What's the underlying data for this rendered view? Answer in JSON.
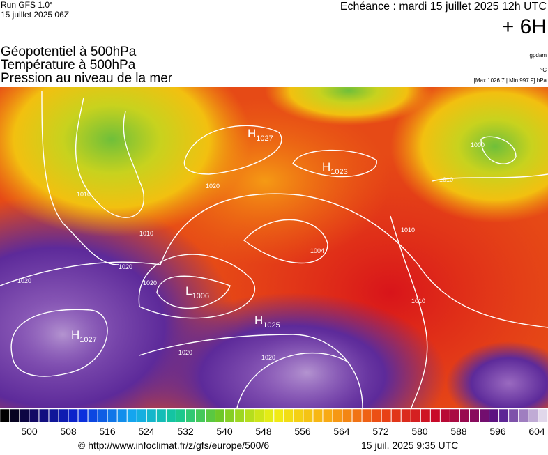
{
  "header": {
    "run": "Run GFS 1.0°",
    "run_date": "15 juillet 2025 06Z",
    "valid": "Echéance : mardi 15 juillet 2025 12h UTC",
    "offset": "+ 6H",
    "layers": [
      "Géopotentiel à 500hPa",
      "Température à 500hPa",
      "Pression au niveau de la mer"
    ],
    "units": [
      "gpdam",
      "°C"
    ],
    "extremes": "[Max 1026.7 | Min 997.9] hPa"
  },
  "pressure_centers": [
    {
      "letter": "H",
      "value": "1027"
    },
    {
      "letter": "H",
      "value": "1023"
    },
    {
      "letter": "L",
      "value": "1006"
    },
    {
      "letter": "H",
      "value": "1025"
    },
    {
      "letter": "H",
      "value": "1027"
    }
  ],
  "isobar_labels": [
    "1020",
    "1010",
    "1020",
    "1020",
    "1020",
    "1020",
    "1020",
    "1010",
    "1000",
    "1010",
    "1004",
    "1010",
    "1010"
  ],
  "scale_ticks": [
    "500",
    "508",
    "516",
    "524",
    "532",
    "540",
    "548",
    "556",
    "564",
    "572",
    "580",
    "588",
    "596",
    "604"
  ],
  "footer": {
    "source": "© http://www.infoclimat.fr/z/gfs/europe/500/6",
    "generated": "15 juil. 2025  9:35 UTC"
  }
}
